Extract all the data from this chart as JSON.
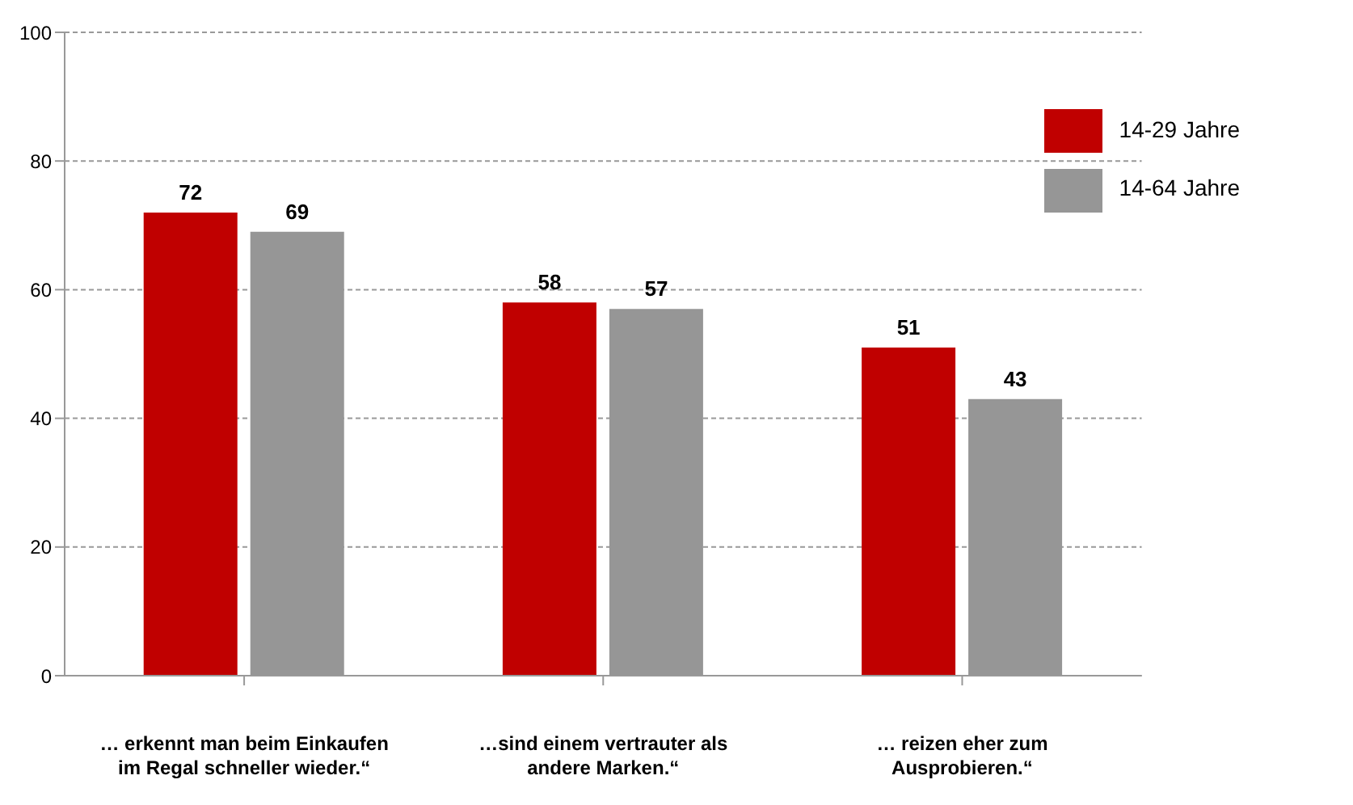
{
  "chart_data": {
    "type": "bar",
    "categories": [
      "… erkennt man beim Einkaufen im Regal schneller wieder.“",
      "…sind einem vertrauter als andere Marken.“",
      "… reizen eher zum Ausprobieren.“"
    ],
    "series": [
      {
        "name": "14-29 Jahre",
        "color": "#c00000",
        "values": [
          72,
          58,
          51
        ]
      },
      {
        "name": "14-64 Jahre",
        "color": "#969696",
        "values": [
          69,
          57,
          43
        ]
      }
    ],
    "ylim": [
      0,
      100
    ],
    "yticks": [
      0,
      20,
      40,
      60,
      80,
      100
    ],
    "grid": "y",
    "legend": "top right",
    "data_labels": true
  }
}
